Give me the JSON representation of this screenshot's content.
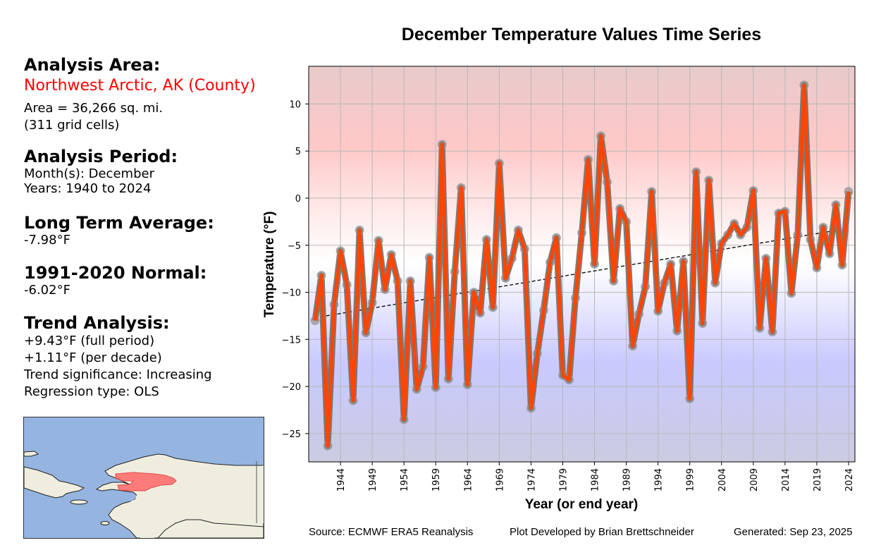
{
  "side_panel": {
    "analysis_area_heading": "Analysis Area:",
    "area_name": "Northwest Arctic, AK (County)",
    "area_size": "Area = 36,266 sq. mi.",
    "grid_cells": "(311 grid cells)",
    "analysis_period_heading": "Analysis Period:",
    "months": "Month(s): December",
    "years": "Years: 1940 to 2024",
    "lta_heading": "Long Term Average:",
    "lta_value": "-7.98°F",
    "normal_heading": "1991-2020 Normal:",
    "normal_value": "-6.02°F",
    "trend_heading": "Trend Analysis:",
    "trend_full": "+9.43°F (full period)",
    "trend_decade": "+1.11°F (per decade)",
    "trend_significance": "Trend significance: Increasing",
    "regression_type": "Regression type: OLS"
  },
  "map": {
    "description": "Locator map of western Alaska with Northwest Arctic borough highlighted",
    "land_color": "#efedde",
    "water_color": "#95b4e0",
    "highlight_color": "#ff6f6f"
  },
  "footer": {
    "source": "Source: ECMWF ERA5 Reanalysis",
    "developer": "Plot Developed by Brian Brettschneider",
    "generated": "Generated: Sep 23, 2025"
  },
  "chart_data": {
    "type": "line",
    "title": "December Temperature Values Time Series",
    "xlabel": "Year (or end year)",
    "ylabel": "Temperature (°F)",
    "xlim": [
      1939,
      2025
    ],
    "ylim": [
      -28,
      14
    ],
    "xticks": [
      1944,
      1949,
      1954,
      1959,
      1964,
      1969,
      1974,
      1979,
      1984,
      1989,
      1994,
      1999,
      2004,
      2009,
      2014,
      2019,
      2024
    ],
    "yticks": [
      10,
      5,
      0,
      -5,
      -10,
      -15,
      -20,
      -25
    ],
    "grid": true,
    "line_color": "#ff4500",
    "marker_color": "#888888",
    "trend": {
      "label": "OLS trend",
      "start": [
        1940,
        -12.7
      ],
      "end": [
        2024,
        -3.2
      ],
      "style": "dashed",
      "color": "#000000"
    },
    "series": [
      {
        "name": "December temperature",
        "x": [
          1940,
          1941,
          1942,
          1943,
          1944,
          1945,
          1946,
          1947,
          1948,
          1949,
          1950,
          1951,
          1952,
          1953,
          1954,
          1955,
          1956,
          1957,
          1958,
          1959,
          1960,
          1961,
          1962,
          1963,
          1964,
          1965,
          1966,
          1967,
          1968,
          1969,
          1970,
          1971,
          1972,
          1973,
          1974,
          1975,
          1976,
          1977,
          1978,
          1979,
          1980,
          1981,
          1982,
          1983,
          1984,
          1985,
          1986,
          1987,
          1988,
          1989,
          1990,
          1991,
          1992,
          1993,
          1994,
          1995,
          1996,
          1997,
          1998,
          1999,
          2000,
          2001,
          2002,
          2003,
          2004,
          2005,
          2006,
          2007,
          2008,
          2009,
          2010,
          2011,
          2012,
          2013,
          2014,
          2015,
          2016,
          2017,
          2018,
          2019,
          2020,
          2021,
          2022,
          2023,
          2024
        ],
        "values": [
          -13.0,
          -8.2,
          -26.3,
          -11.3,
          -5.6,
          -9.2,
          -21.5,
          -3.4,
          -14.3,
          -11.1,
          -4.5,
          -9.7,
          -6.0,
          -8.8,
          -23.5,
          -8.8,
          -20.3,
          -17.9,
          -6.3,
          -20.1,
          5.7,
          -19.2,
          -7.8,
          1.1,
          -19.8,
          -10.0,
          -12.2,
          -4.4,
          -11.6,
          3.7,
          -8.5,
          -6.4,
          -3.4,
          -5.4,
          -22.3,
          -16.5,
          -11.9,
          -6.8,
          -4.2,
          -18.8,
          -19.3,
          -10.6,
          -3.7,
          4.1,
          -7.0,
          6.6,
          1.7,
          -8.8,
          -1.1,
          -2.5,
          -15.7,
          -12.3,
          -9.4,
          0.7,
          -12.0,
          -9.0,
          -7.0,
          -14.1,
          -6.7,
          -21.3,
          2.8,
          -13.3,
          1.9,
          -9.0,
          -4.8,
          -3.9,
          -2.7,
          -3.9,
          -3.1,
          0.8,
          -13.8,
          -6.4,
          -14.2,
          -1.6,
          -1.4,
          -10.1,
          -3.9,
          12.0,
          -4.4,
          -7.4,
          -3.1,
          -5.9,
          -0.7,
          -7.1,
          0.7
        ]
      }
    ]
  }
}
